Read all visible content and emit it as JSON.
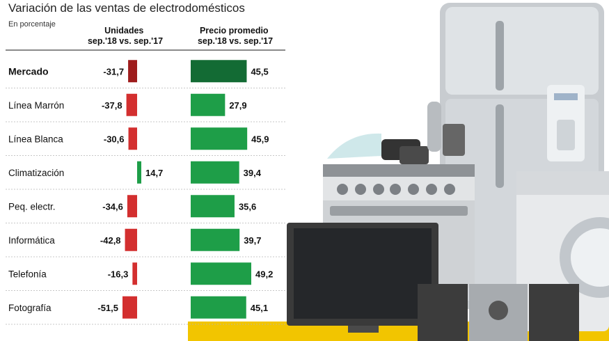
{
  "chart_data": {
    "type": "bar",
    "title": "Variación de las ventas de electrodomésticos",
    "subtitle": "En porcentaje",
    "categories": [
      "Mercado",
      "Línea Marrón",
      "Línea Blanca",
      "Climatización",
      "Peq. electr.",
      "Informática",
      "Telefonía",
      "Fotografía"
    ],
    "series": [
      {
        "name": "Unidades\nsep.'18 vs. sep.'17",
        "values": [
          -31.7,
          -37.8,
          -30.6,
          14.7,
          -34.6,
          -42.8,
          -16.3,
          -51.5
        ],
        "labels": [
          "-31,7",
          "-37,8",
          "-30,6",
          "14,7",
          "-34,6",
          "-42,8",
          "-16,3",
          "-51,5"
        ]
      },
      {
        "name": "Precio promedio\nsep.'18 vs. sep.'17",
        "values": [
          45.5,
          27.9,
          45.9,
          39.4,
          35.6,
          39.7,
          49.2,
          45.1
        ],
        "labels": [
          "45,5",
          "27,9",
          "45,9",
          "39,4",
          "35,6",
          "39,7",
          "49,2",
          "45,1"
        ]
      }
    ],
    "colors": {
      "negative": "#d32f2f",
      "positive": "#1e9e48",
      "highlight": "#136b34",
      "highlight_negative": "#9e1c1c",
      "accent_band": "#f2c500"
    }
  }
}
